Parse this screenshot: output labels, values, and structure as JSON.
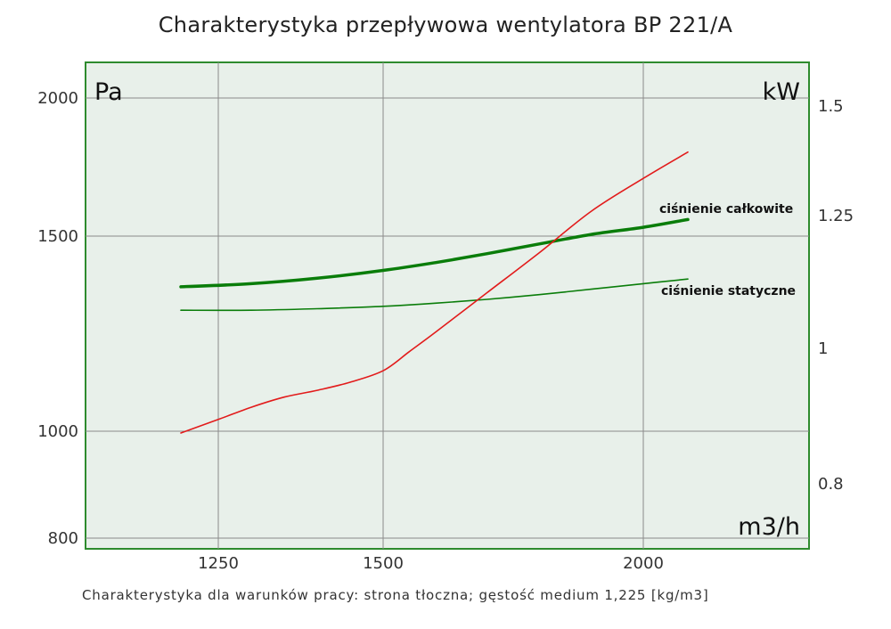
{
  "chart_data": {
    "type": "line",
    "title": "Charakterystyka przepływowa wentylatora BP 221/A",
    "footnote": "Charakterystyka dla warunków pracy: strona tłoczna; gęstość medium 1,225 [kg/m3]",
    "xlabel": "m3/h",
    "ylabel_left": "Pa",
    "ylabel_right": "kW",
    "x_ticks": [
      1250,
      1500,
      2000
    ],
    "y_left_ticks": [
      800,
      1000,
      1500,
      2000
    ],
    "y_right_ticks": [
      0.8,
      1,
      1.25,
      1.5
    ],
    "grid": true,
    "series": [
      {
        "name": "ciśnienie całkowite",
        "axis": "left",
        "color": "#0a7d0a",
        "x": [
          1200,
          1300,
          1400,
          1500,
          1600,
          1700,
          1800,
          1900,
          2000,
          2080
        ],
        "y": [
          1370,
          1378,
          1392,
          1412,
          1432,
          1455,
          1480,
          1506,
          1532,
          1560
        ]
      },
      {
        "name": "ciśnienie statyczne",
        "axis": "left",
        "color": "#0a7d0a",
        "x": [
          1200,
          1300,
          1400,
          1500,
          1600,
          1700,
          1800,
          1900,
          2000,
          2080
        ],
        "y": [
          1310,
          1310,
          1314,
          1320,
          1328,
          1338,
          1350,
          1364,
          1378,
          1390
        ]
      },
      {
        "name": "",
        "axis": "right",
        "color": "#e21b1b",
        "x": [
          1200,
          1250,
          1300,
          1350,
          1400,
          1450,
          1500,
          1550,
          1600,
          1700,
          1800,
          1900,
          2000,
          2080
        ],
        "y": [
          0.875,
          0.895,
          0.913,
          0.928,
          0.938,
          0.95,
          0.967,
          0.995,
          1.03,
          1.105,
          1.18,
          1.26,
          1.335,
          1.395
        ]
      }
    ]
  }
}
